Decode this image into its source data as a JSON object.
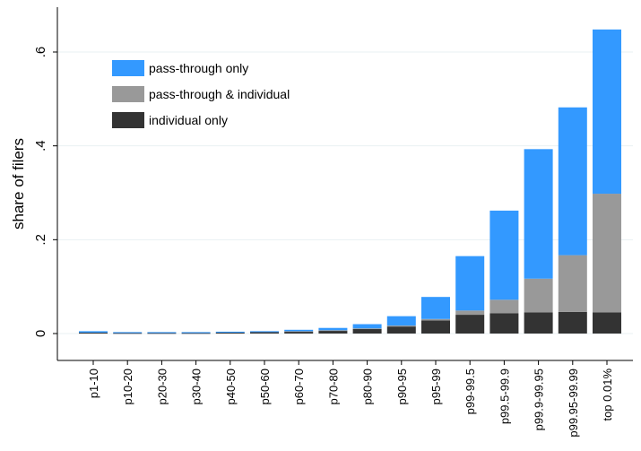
{
  "chart_data": {
    "type": "bar",
    "stacked": true,
    "title": "",
    "xlabel": "",
    "ylabel": "share of filers",
    "ylim": [
      -0.06,
      0.68
    ],
    "yticks": [
      0,
      0.2,
      0.4,
      0.6
    ],
    "ytick_labels": [
      "0",
      ".2",
      ".4",
      ".6"
    ],
    "grid": true,
    "legend_position": "top-left",
    "categories": [
      "p1-10",
      "p10-20",
      "p20-30",
      "p30-40",
      "p40-50",
      "p50-60",
      "p60-70",
      "p70-80",
      "p80-90",
      "p90-95",
      "p95-99",
      "p99-99.5",
      "p99.5-99.9",
      "p99.9-99.95",
      "p99.95-99.99",
      "top 0.01%"
    ],
    "series": [
      {
        "name": "individual only",
        "color": "#333333",
        "values": [
          0.002,
          0.001,
          0.001,
          0.001,
          0.002,
          0.003,
          0.004,
          0.006,
          0.01,
          0.015,
          0.028,
          0.04,
          0.043,
          0.045,
          0.046,
          0.045
        ]
      },
      {
        "name": "pass-through & individual",
        "color": "#999999",
        "values": [
          0.0,
          0.0,
          0.0,
          0.0,
          0.0,
          0.0,
          0.001,
          0.001,
          0.001,
          0.002,
          0.003,
          0.009,
          0.029,
          0.072,
          0.121,
          0.253
        ]
      },
      {
        "name": "pass-through only",
        "color": "#3399ff",
        "values": [
          0.003,
          0.002,
          0.002,
          0.002,
          0.002,
          0.002,
          0.003,
          0.005,
          0.009,
          0.02,
          0.047,
          0.116,
          0.19,
          0.276,
          0.315,
          0.35
        ]
      }
    ],
    "legend_order": [
      "pass-through only",
      "pass-through & individual",
      "individual only"
    ]
  }
}
